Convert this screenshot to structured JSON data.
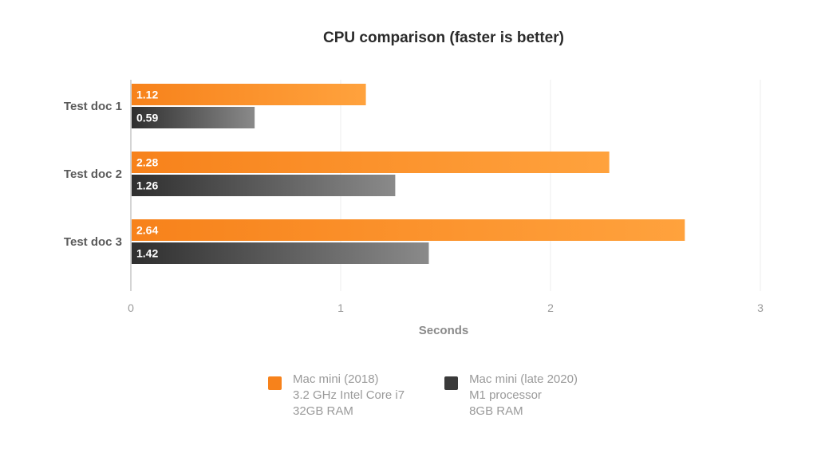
{
  "chart_data": {
    "type": "bar",
    "orientation": "horizontal",
    "title": "CPU comparison (faster is better)",
    "xlabel": "Seconds",
    "ylabel": "",
    "categories": [
      "Test doc 1",
      "Test doc 2",
      "Test doc 3"
    ],
    "series": [
      {
        "name": "Mac mini (2018)",
        "values": [
          1.12,
          2.28,
          2.64
        ],
        "color": "#f7821b",
        "color_light": "#ffa23d"
      },
      {
        "name": "Mac mini (late 2020)",
        "values": [
          0.59,
          1.26,
          1.42
        ],
        "color": "#2f2f2f",
        "color_light": "#8a8a8a"
      }
    ],
    "xlim": [
      0,
      3
    ],
    "xticks": [
      "0",
      "1",
      "2",
      "3"
    ],
    "grid": true,
    "legend_position": "bottom"
  },
  "legend": [
    {
      "color": "#f7821b",
      "lines": [
        "Mac mini (2018)",
        "3.2 GHz Intel Core i7",
        "32GB RAM"
      ]
    },
    {
      "color": "#3a3a3a",
      "lines": [
        "Mac mini (late 2020)",
        "M1 processor",
        "8GB RAM"
      ]
    }
  ]
}
